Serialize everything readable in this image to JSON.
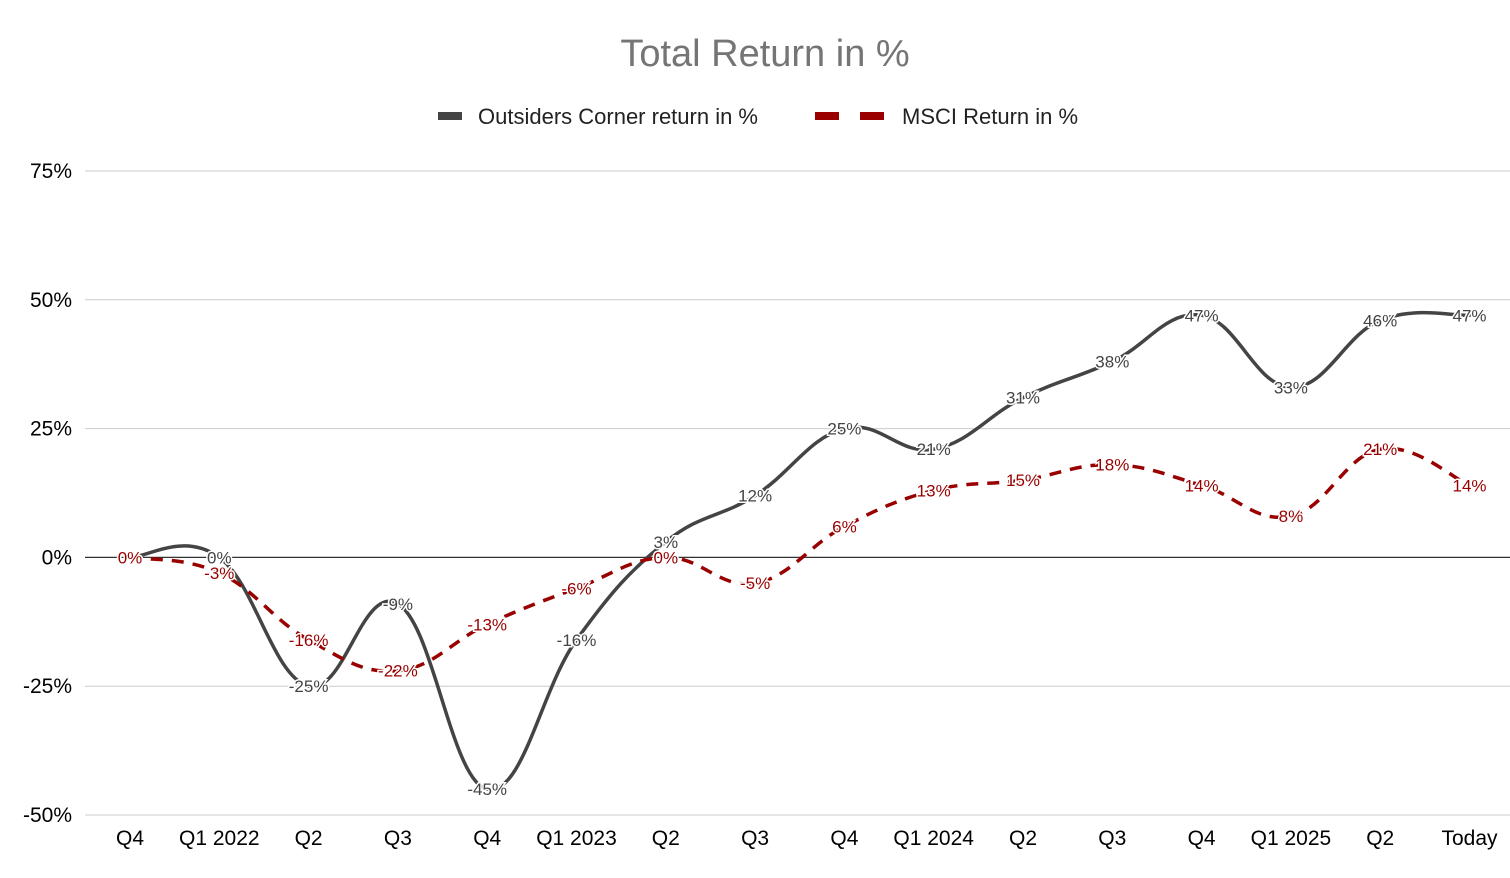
{
  "chart_data": {
    "type": "line",
    "title": "Total Return in %",
    "categories": [
      "Q4",
      "Q1 2022",
      "Q2",
      "Q3",
      "Q4",
      "Q1 2023",
      "Q2",
      "Q3",
      "Q4",
      "Q1 2024",
      "Q2",
      "Q3",
      "Q4",
      "Q1 2025",
      "Q2",
      "Today"
    ],
    "series": [
      {
        "name": "Outsiders Corner return in %",
        "color": "#444444",
        "dash": "solid",
        "values": [
          0,
          0,
          -25,
          -9,
          -45,
          -16,
          3,
          12,
          25,
          21,
          31,
          38,
          47,
          33,
          46,
          47
        ],
        "labels": [
          "0%",
          "0%",
          "-25%",
          "-9%",
          "-45%",
          "-16%",
          "3%",
          "12%",
          "25%",
          "21%",
          "31%",
          "38%",
          "47%",
          "33%",
          "46%",
          "47%"
        ]
      },
      {
        "name": "MSCI Return in %",
        "color": "#990000",
        "dash": "dashed",
        "values": [
          0,
          -3,
          -16,
          -22,
          -13,
          -6,
          0,
          -5,
          6,
          13,
          15,
          18,
          14,
          8,
          21,
          14
        ],
        "labels": [
          "0%",
          "-3%",
          "-16%",
          "-22%",
          "-13%",
          "-6%",
          "0%",
          "-5%",
          "6%",
          "13%",
          "15%",
          "18%",
          "14%",
          "8%",
          "21%",
          "14%"
        ]
      }
    ],
    "yticks": [
      "75%",
      "50%",
      "25%",
      "0%",
      "-25%",
      "-50%"
    ],
    "ytick_values": [
      75,
      50,
      25,
      0,
      -25,
      -50
    ],
    "ylim": [
      -50,
      75
    ],
    "grid": true,
    "legend_position": "top-center"
  }
}
